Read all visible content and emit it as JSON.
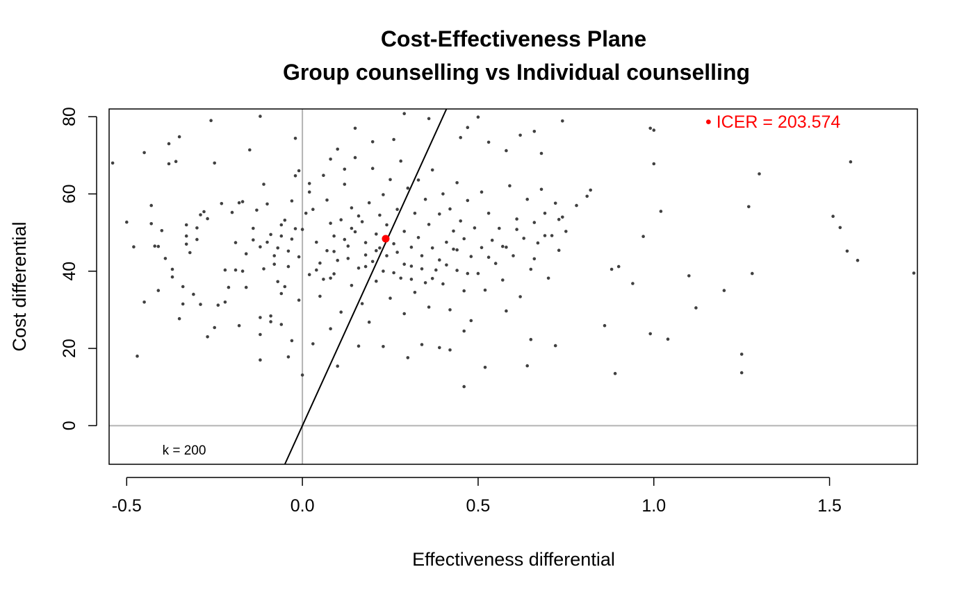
{
  "chart_data": {
    "type": "scatter",
    "title": "Cost-Effectiveness Plane",
    "subtitle": "Group counselling vs Individual counselling",
    "xlabel": "Effectiveness differential",
    "ylabel": "Cost differential",
    "xlim": [
      -0.55,
      1.75
    ],
    "ylim": [
      -10,
      82
    ],
    "x_ticks": [
      -0.5,
      0.0,
      0.5,
      1.0,
      1.5
    ],
    "x_tick_labels": [
      "-0.5",
      "0.0",
      "0.5",
      "1.0",
      "1.5"
    ],
    "y_ticks": [
      0,
      20,
      40,
      60,
      80
    ],
    "y_tick_labels": [
      "0",
      "20",
      "40",
      "60",
      "80"
    ],
    "reference_lines": {
      "x": 0,
      "y": 0,
      "color": "#b3b3b3"
    },
    "wtp_line": {
      "k": 200,
      "label": "k = 200"
    },
    "icer": {
      "x": 0.237,
      "y": 48.4,
      "value": 203.574,
      "label": "• ICER = 203.574",
      "color": "#ff0000"
    },
    "point_color": "#404040",
    "points": [
      [
        -0.54,
        68
      ],
      [
        -0.5,
        52.7
      ],
      [
        -0.48,
        46.3
      ],
      [
        -0.47,
        18
      ],
      [
        -0.45,
        70.7
      ],
      [
        -0.45,
        32
      ],
      [
        -0.43,
        57
      ],
      [
        -0.43,
        52.3
      ],
      [
        -0.42,
        46.5
      ],
      [
        -0.41,
        35
      ],
      [
        -0.4,
        50.5
      ],
      [
        -0.39,
        43.3
      ],
      [
        -0.38,
        73
      ],
      [
        -0.38,
        67.8
      ],
      [
        -0.37,
        40.5
      ],
      [
        -0.37,
        38.5
      ],
      [
        -0.36,
        68.4
      ],
      [
        -0.35,
        74.8
      ],
      [
        -0.34,
        36
      ],
      [
        -0.34,
        31.5
      ],
      [
        -0.33,
        52
      ],
      [
        -0.33,
        47
      ],
      [
        -0.32,
        44.8
      ],
      [
        -0.31,
        34
      ],
      [
        -0.3,
        51.2
      ],
      [
        -0.3,
        48.2
      ],
      [
        -0.29,
        54.6
      ],
      [
        -0.28,
        55.4
      ],
      [
        -0.27,
        23
      ],
      [
        -0.26,
        79
      ],
      [
        -0.25,
        68
      ],
      [
        -0.25,
        25.4
      ],
      [
        -0.24,
        31.2
      ],
      [
        -0.23,
        57.5
      ],
      [
        -0.22,
        32
      ],
      [
        -0.2,
        55.2
      ],
      [
        -0.19,
        40.3
      ],
      [
        -0.18,
        57.7
      ],
      [
        -0.17,
        58
      ],
      [
        -0.17,
        40
      ],
      [
        -0.16,
        35.8
      ],
      [
        -0.15,
        71.4
      ],
      [
        -0.14,
        48.1
      ],
      [
        -0.13,
        55.8
      ],
      [
        -0.12,
        46.3
      ],
      [
        -0.12,
        28
      ],
      [
        -0.12,
        17
      ],
      [
        -0.11,
        40.6
      ],
      [
        -0.11,
        62.5
      ],
      [
        -0.1,
        57.4
      ],
      [
        -0.09,
        49.5
      ],
      [
        -0.09,
        28.4
      ],
      [
        -0.09,
        26.9
      ],
      [
        -0.08,
        44
      ],
      [
        -0.07,
        46
      ],
      [
        -0.06,
        52
      ],
      [
        -0.05,
        53.2
      ],
      [
        -0.05,
        36
      ],
      [
        -0.04,
        45.2
      ],
      [
        -0.04,
        17.8
      ],
      [
        -0.03,
        48.3
      ],
      [
        -0.03,
        58.2
      ],
      [
        -0.02,
        51
      ],
      [
        -0.02,
        64.7
      ],
      [
        -0.01,
        66
      ],
      [
        0.0,
        50.8
      ],
      [
        0.01,
        55
      ],
      [
        0.02,
        62.7
      ],
      [
        -0.12,
        80.1
      ],
      [
        -0.01,
        32.5
      ],
      [
        -0.06,
        34.2
      ],
      [
        -0.07,
        37.3
      ],
      [
        -0.08,
        41.8
      ],
      [
        0.02,
        60.5
      ],
      [
        0.03,
        56
      ],
      [
        0.04,
        47.5
      ],
      [
        0.05,
        42.1
      ],
      [
        0.05,
        33.5
      ],
      [
        0.06,
        64.8
      ],
      [
        0.07,
        58.4
      ],
      [
        0.08,
        52.4
      ],
      [
        0.08,
        38.2
      ],
      [
        0.09,
        49.1
      ],
      [
        0.09,
        45.1
      ],
      [
        0.1,
        71.6
      ],
      [
        0.11,
        53.3
      ],
      [
        0.11,
        29.4
      ],
      [
        0.12,
        62.5
      ],
      [
        0.13,
        46.5
      ],
      [
        0.13,
        43.3
      ],
      [
        0.14,
        56.4
      ],
      [
        0.14,
        36.3
      ],
      [
        0.15,
        69.4
      ],
      [
        0.15,
        50.2
      ],
      [
        0.16,
        40.8
      ],
      [
        0.17,
        52.8
      ],
      [
        0.17,
        31.6
      ],
      [
        0.18,
        47.4
      ],
      [
        0.18,
        44.2
      ],
      [
        0.19,
        57.7
      ],
      [
        0.19,
        26.8
      ],
      [
        0.2,
        66.6
      ],
      [
        0.2,
        42.5
      ],
      [
        0.21,
        49.6
      ],
      [
        0.21,
        37.4
      ],
      [
        0.22,
        54.5
      ],
      [
        0.22,
        46
      ],
      [
        0.23,
        59.8
      ],
      [
        0.23,
        40
      ],
      [
        0.24,
        52
      ],
      [
        0.25,
        63.7
      ],
      [
        0.25,
        33
      ],
      [
        0.26,
        47.1
      ],
      [
        0.27,
        56
      ],
      [
        0.27,
        44.9
      ],
      [
        0.28,
        68.5
      ],
      [
        0.28,
        38.2
      ],
      [
        0.29,
        50.3
      ],
      [
        0.29,
        29
      ],
      [
        0.3,
        61.5
      ],
      [
        0.31,
        46.2
      ],
      [
        0.31,
        41.3
      ],
      [
        0.32,
        55
      ],
      [
        0.32,
        34.5
      ],
      [
        0.33,
        63.6
      ],
      [
        0.33,
        48.7
      ],
      [
        0.34,
        44
      ],
      [
        0.35,
        58.6
      ],
      [
        0.35,
        37
      ],
      [
        0.36,
        52.1
      ],
      [
        0.36,
        30.7
      ],
      [
        0.37,
        46
      ],
      [
        0.37,
        66.2
      ],
      [
        0.38,
        40.3
      ],
      [
        0.39,
        54.8
      ],
      [
        0.39,
        42.9
      ],
      [
        0.4,
        60
      ],
      [
        0.4,
        36.7
      ],
      [
        0.41,
        47.5
      ],
      [
        0.42,
        56.1
      ],
      [
        0.42,
        30
      ],
      [
        0.43,
        50.4
      ],
      [
        0.43,
        45.7
      ],
      [
        0.44,
        62.9
      ],
      [
        0.44,
        40.2
      ],
      [
        0.45,
        53
      ],
      [
        0.46,
        48.4
      ],
      [
        0.46,
        34.9
      ],
      [
        0.47,
        58.3
      ],
      [
        0.48,
        43.8
      ],
      [
        0.48,
        27.2
      ],
      [
        0.49,
        51.2
      ],
      [
        0.5,
        39.4
      ],
      [
        0.51,
        60.5
      ],
      [
        0.51,
        46.1
      ],
      [
        0.52,
        35.1
      ],
      [
        0.53,
        55
      ],
      [
        0.54,
        48
      ],
      [
        0.55,
        42
      ],
      [
        0.56,
        51.1
      ],
      [
        0.57,
        37.7
      ],
      [
        0.58,
        46.2
      ],
      [
        0.59,
        62.1
      ],
      [
        0.6,
        44
      ],
      [
        0.61,
        53.5
      ],
      [
        0.62,
        33.4
      ],
      [
        0.63,
        48.5
      ],
      [
        0.64,
        58.6
      ],
      [
        0.65,
        40.5
      ],
      [
        0.66,
        52.6
      ],
      [
        0.67,
        47.3
      ],
      [
        0.68,
        61.2
      ],
      [
        0.69,
        55
      ],
      [
        0.7,
        38.2
      ],
      [
        0.71,
        49.2
      ],
      [
        0.72,
        57.6
      ],
      [
        0.73,
        45.4
      ],
      [
        0.74,
        54
      ],
      [
        0.75,
        50.3
      ],
      [
        0.78,
        57
      ],
      [
        0.81,
        59.4
      ],
      [
        0.82,
        61
      ],
      [
        0.86,
        25.9
      ],
      [
        0.88,
        40.5
      ],
      [
        0.9,
        41.2
      ],
      [
        0.94,
        36.8
      ],
      [
        0.97,
        49
      ],
      [
        1.0,
        67.8
      ],
      [
        1.02,
        55.5
      ],
      [
        1.04,
        22.4
      ],
      [
        1.1,
        38.8
      ],
      [
        1.12,
        30.5
      ],
      [
        1.2,
        35
      ],
      [
        1.25,
        18.5
      ],
      [
        1.27,
        56.7
      ],
      [
        1.28,
        39.4
      ],
      [
        1.3,
        65.2
      ],
      [
        1.51,
        54.2
      ],
      [
        1.53,
        51.3
      ],
      [
        1.55,
        45.2
      ],
      [
        1.56,
        68.3
      ],
      [
        1.58,
        42.8
      ],
      [
        1.74,
        39.5
      ],
      [
        -0.41,
        46.4
      ],
      [
        -0.33,
        49.1
      ],
      [
        -0.27,
        53.6
      ],
      [
        -0.22,
        40.3
      ],
      [
        -0.21,
        35.8
      ],
      [
        -0.19,
        47.4
      ],
      [
        -0.16,
        44.5
      ],
      [
        -0.14,
        51.1
      ],
      [
        -0.1,
        47.5
      ],
      [
        -0.06,
        49.1
      ],
      [
        -0.04,
        41.2
      ],
      [
        -0.01,
        43.7
      ],
      [
        0.02,
        39.1
      ],
      [
        0.04,
        40.3
      ],
      [
        0.06,
        37.9
      ],
      [
        0.07,
        45.3
      ],
      [
        0.09,
        39.3
      ],
      [
        0.1,
        42.8
      ],
      [
        0.12,
        48.2
      ],
      [
        0.14,
        51.1
      ],
      [
        0.16,
        54.3
      ],
      [
        0.18,
        41.2
      ],
      [
        0.21,
        45.3
      ],
      [
        0.24,
        44
      ],
      [
        0.26,
        39.6
      ],
      [
        0.29,
        41.8
      ],
      [
        0.31,
        37.9
      ],
      [
        0.34,
        40.6
      ],
      [
        0.37,
        38.1
      ],
      [
        0.41,
        41.6
      ],
      [
        0.44,
        45.5
      ],
      [
        0.47,
        39.4
      ],
      [
        0.53,
        43.6
      ],
      [
        0.57,
        46.4
      ],
      [
        0.61,
        50.8
      ],
      [
        0.66,
        43.2
      ],
      [
        0.69,
        49.2
      ],
      [
        0.73,
        53.4
      ],
      [
        -0.02,
        74.4
      ],
      [
        0.08,
        69
      ],
      [
        0.12,
        66.4
      ],
      [
        0.15,
        77
      ],
      [
        0.2,
        73.5
      ],
      [
        0.26,
        74.1
      ],
      [
        0.29,
        80.8
      ],
      [
        0.36,
        79.5
      ],
      [
        0.45,
        74.6
      ],
      [
        0.47,
        77.2
      ],
      [
        0.5,
        79.9
      ],
      [
        0.53,
        73.4
      ],
      [
        0.58,
        71.2
      ],
      [
        0.62,
        75.2
      ],
      [
        0.66,
        76.2
      ],
      [
        0.68,
        70.5
      ],
      [
        0.74,
        78.9
      ],
      [
        0.99,
        77
      ],
      [
        1.0,
        76.5
      ],
      [
        -0.35,
        27.7
      ],
      [
        -0.29,
        31.4
      ],
      [
        -0.18,
        25.9
      ],
      [
        -0.12,
        23.6
      ],
      [
        -0.06,
        26.2
      ],
      [
        -0.03,
        22
      ],
      [
        0.03,
        21.2
      ],
      [
        0.08,
        25.1
      ],
      [
        0.1,
        15.4
      ],
      [
        0.16,
        20.6
      ],
      [
        0.23,
        20.5
      ],
      [
        0.3,
        17.6
      ],
      [
        0.34,
        21
      ],
      [
        0.39,
        20.2
      ],
      [
        0.42,
        19.6
      ],
      [
        0.46,
        24.5
      ],
      [
        0.52,
        15.1
      ],
      [
        0.58,
        29.7
      ],
      [
        0.64,
        15.5
      ],
      [
        0.65,
        22.3
      ],
      [
        0.72,
        20.7
      ],
      [
        0.89,
        13.5
      ],
      [
        0.99,
        23.8
      ],
      [
        1.25,
        13.7
      ],
      [
        0.46,
        10.1
      ],
      [
        0.0,
        13.1
      ]
    ]
  }
}
